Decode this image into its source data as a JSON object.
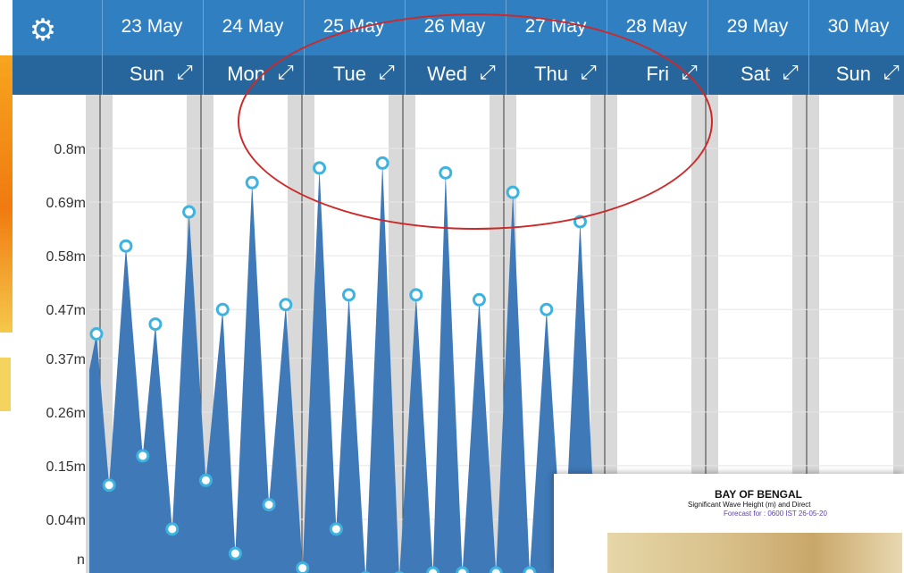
{
  "header": {
    "settings_icon": "gear-icon",
    "dates": [
      "23 May",
      "24 May",
      "25 May",
      "26 May",
      "27 May",
      "28 May",
      "29 May",
      "30 May"
    ],
    "days": [
      "Sun",
      "Mon",
      "Tue",
      "Wed",
      "Thu",
      "Fri",
      "Sat",
      "Sun"
    ],
    "expand_icon": "expand-arrows-icon"
  },
  "colors": {
    "header_top": "#2f7fc1",
    "header_bottom": "#26669c",
    "wave_fill": "#3f79b8",
    "point_stroke": "#3fb3e0",
    "annotation": "#cc2a2a"
  },
  "chart_data": {
    "type": "area",
    "ylabel": "",
    "y_ticks": [
      "0.8m",
      "0.69m",
      "0.58m",
      "0.47m",
      "0.37m",
      "0.26m",
      "0.15m",
      "0.04m"
    ],
    "tick_values": [
      0.8,
      0.69,
      0.58,
      0.47,
      0.37,
      0.26,
      0.15,
      0.04
    ],
    "ylim": [
      -0.07,
      0.91
    ],
    "grid": true,
    "unit": "m",
    "series": [
      {
        "points": [
          [
            "23 May 00:00",
            0.42
          ],
          [
            "23 May 03:00",
            0.11
          ],
          [
            "23 May 07:00",
            0.6
          ],
          [
            "23 May 11:00",
            0.17
          ],
          [
            "23 May 14:00",
            0.44
          ],
          [
            "23 May 18:00",
            0.02
          ],
          [
            "23 May 22:00",
            0.67
          ],
          [
            "24 May 02:00",
            0.12
          ],
          [
            "24 May 06:00",
            0.47
          ],
          [
            "24 May 09:00",
            -0.03
          ],
          [
            "24 May 13:00",
            0.73
          ],
          [
            "24 May 17:00",
            0.07
          ],
          [
            "24 May 21:00",
            0.48
          ],
          [
            "25 May 01:00",
            -0.06
          ],
          [
            "25 May 05:00",
            0.76
          ],
          [
            "25 May 09:00",
            0.02
          ],
          [
            "25 May 12:00",
            0.5
          ],
          [
            "25 May 16:00",
            -0.08
          ],
          [
            "25 May 20:00",
            0.77
          ],
          [
            "26 May 00:00",
            -0.08
          ],
          [
            "26 May 04:00",
            0.5
          ],
          [
            "26 May 08:00",
            -0.07
          ],
          [
            "26 May 11:00",
            0.75
          ],
          [
            "26 May 15:00",
            -0.07
          ],
          [
            "26 May 19:00",
            0.49
          ],
          [
            "26 May 23:00",
            -0.07
          ],
          [
            "27 May 03:00",
            0.71
          ],
          [
            "27 May 07:00",
            -0.07
          ],
          [
            "27 May 11:00",
            0.47
          ],
          [
            "27 May 15:00",
            -0.07
          ],
          [
            "27 May 19:00",
            0.65
          ],
          [
            "27 May 23:00",
            -0.07
          ]
        ]
      }
    ]
  },
  "inset": {
    "title": "BAY OF BENGAL",
    "subtitle": "Significant Wave Height (m) and Direct",
    "forecast": "Forecast for : 0600 IST 26-05-20"
  },
  "left_labels": [
    "n"
  ]
}
